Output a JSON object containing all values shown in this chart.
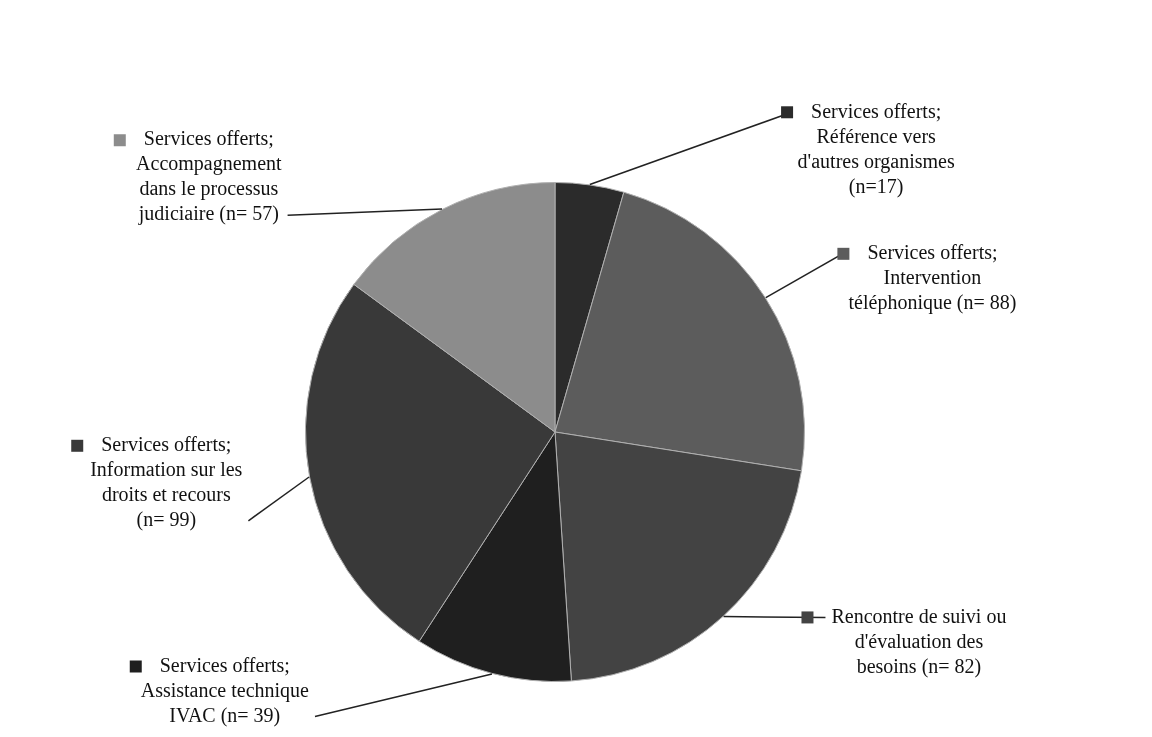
{
  "chart_data": {
    "type": "pie",
    "categories": [
      "Services offerts; Référence vers d'autres organismes (n=17)",
      "Services offerts; Intervention téléphonique (n= 88)",
      "Rencontre de suivi ou d'évaluation des besoins (n= 82)",
      "Services offerts; Assistance technique IVAC (n= 39)",
      "Services offerts; Information sur les droits et recours (n= 99)",
      "Services offerts; Accompagnement dans le processus judiciaire (n= 57)"
    ],
    "values": [
      17,
      88,
      82,
      39,
      99,
      57
    ],
    "colors": [
      "#2b2b2b",
      "#5c5c5c",
      "#434343",
      "#1f1f1f",
      "#393939",
      "#8c8c8c"
    ],
    "legend": "top left"
  }
}
